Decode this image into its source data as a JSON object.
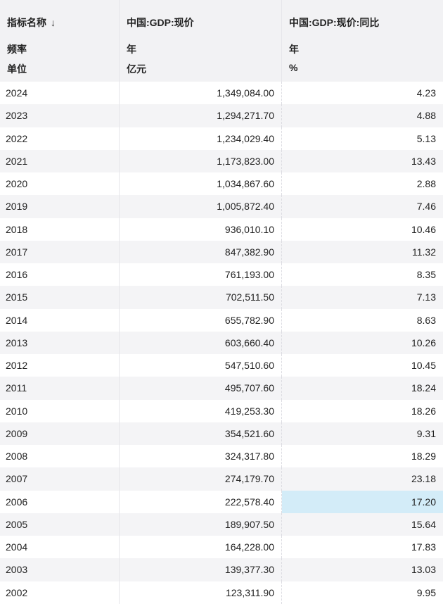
{
  "header": {
    "col1": {
      "name": "指标名称",
      "freq_label": "频率",
      "unit_label": "单位",
      "sort_icon": "↓"
    },
    "col2": {
      "name": "中国:GDP:现价",
      "freq": "年",
      "unit": "亿元"
    },
    "col3": {
      "name": "中国:GDP:现价:同比",
      "freq": "年",
      "unit": "%"
    }
  },
  "rows": [
    {
      "year": "2024",
      "gdp": "1,349,084.00",
      "yoy": "4.23"
    },
    {
      "year": "2023",
      "gdp": "1,294,271.70",
      "yoy": "4.88"
    },
    {
      "year": "2022",
      "gdp": "1,234,029.40",
      "yoy": "5.13"
    },
    {
      "year": "2021",
      "gdp": "1,173,823.00",
      "yoy": "13.43"
    },
    {
      "year": "2020",
      "gdp": "1,034,867.60",
      "yoy": "2.88"
    },
    {
      "year": "2019",
      "gdp": "1,005,872.40",
      "yoy": "7.46"
    },
    {
      "year": "2018",
      "gdp": "936,010.10",
      "yoy": "10.46"
    },
    {
      "year": "2017",
      "gdp": "847,382.90",
      "yoy": "11.32"
    },
    {
      "year": "2016",
      "gdp": "761,193.00",
      "yoy": "8.35"
    },
    {
      "year": "2015",
      "gdp": "702,511.50",
      "yoy": "7.13"
    },
    {
      "year": "2014",
      "gdp": "655,782.90",
      "yoy": "8.63"
    },
    {
      "year": "2013",
      "gdp": "603,660.40",
      "yoy": "10.26"
    },
    {
      "year": "2012",
      "gdp": "547,510.60",
      "yoy": "10.45"
    },
    {
      "year": "2011",
      "gdp": "495,707.60",
      "yoy": "18.24"
    },
    {
      "year": "2010",
      "gdp": "419,253.30",
      "yoy": "18.26"
    },
    {
      "year": "2009",
      "gdp": "354,521.60",
      "yoy": "9.31"
    },
    {
      "year": "2008",
      "gdp": "324,317.80",
      "yoy": "18.29"
    },
    {
      "year": "2007",
      "gdp": "274,179.70",
      "yoy": "23.18"
    },
    {
      "year": "2006",
      "gdp": "222,578.40",
      "yoy": "17.20",
      "selected": true
    },
    {
      "year": "2005",
      "gdp": "189,907.50",
      "yoy": "15.64"
    },
    {
      "year": "2004",
      "gdp": "164,228.00",
      "yoy": "17.83"
    },
    {
      "year": "2003",
      "gdp": "139,377.30",
      "yoy": "13.03"
    },
    {
      "year": "2002",
      "gdp": "123,311.90",
      "yoy": "9.95"
    }
  ],
  "colors": {
    "accent": "#2bb3a6",
    "selected": "#d3ecf8",
    "stripe": "#f4f4f6",
    "header_bg": "#f2f2f4"
  }
}
